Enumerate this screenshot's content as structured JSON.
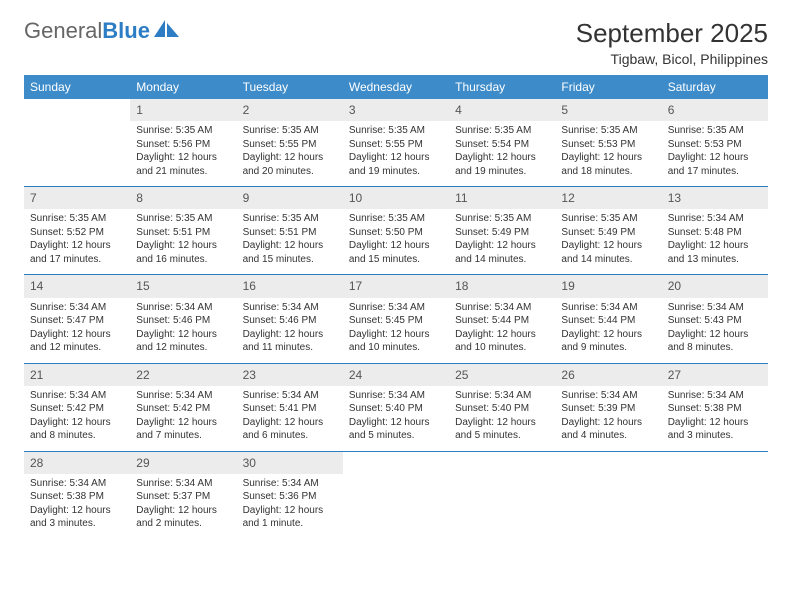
{
  "logo": {
    "general": "General",
    "blue": "Blue"
  },
  "title": "September 2025",
  "location": "Tigbaw, Bicol, Philippines",
  "colors": {
    "header_bg": "#3d8bc9",
    "header_text": "#ffffff",
    "daynum_bg": "#ececec",
    "border": "#2d7dc5",
    "logo_blue": "#2d7dc5",
    "body_text": "#333333"
  },
  "weekdays": [
    "Sunday",
    "Monday",
    "Tuesday",
    "Wednesday",
    "Thursday",
    "Friday",
    "Saturday"
  ],
  "weeks": [
    [
      null,
      {
        "n": "1",
        "sr": "5:35 AM",
        "ss": "5:56 PM",
        "dl": "12 hours and 21 minutes."
      },
      {
        "n": "2",
        "sr": "5:35 AM",
        "ss": "5:55 PM",
        "dl": "12 hours and 20 minutes."
      },
      {
        "n": "3",
        "sr": "5:35 AM",
        "ss": "5:55 PM",
        "dl": "12 hours and 19 minutes."
      },
      {
        "n": "4",
        "sr": "5:35 AM",
        "ss": "5:54 PM",
        "dl": "12 hours and 19 minutes."
      },
      {
        "n": "5",
        "sr": "5:35 AM",
        "ss": "5:53 PM",
        "dl": "12 hours and 18 minutes."
      },
      {
        "n": "6",
        "sr": "5:35 AM",
        "ss": "5:53 PM",
        "dl": "12 hours and 17 minutes."
      }
    ],
    [
      {
        "n": "7",
        "sr": "5:35 AM",
        "ss": "5:52 PM",
        "dl": "12 hours and 17 minutes."
      },
      {
        "n": "8",
        "sr": "5:35 AM",
        "ss": "5:51 PM",
        "dl": "12 hours and 16 minutes."
      },
      {
        "n": "9",
        "sr": "5:35 AM",
        "ss": "5:51 PM",
        "dl": "12 hours and 15 minutes."
      },
      {
        "n": "10",
        "sr": "5:35 AM",
        "ss": "5:50 PM",
        "dl": "12 hours and 15 minutes."
      },
      {
        "n": "11",
        "sr": "5:35 AM",
        "ss": "5:49 PM",
        "dl": "12 hours and 14 minutes."
      },
      {
        "n": "12",
        "sr": "5:35 AM",
        "ss": "5:49 PM",
        "dl": "12 hours and 14 minutes."
      },
      {
        "n": "13",
        "sr": "5:34 AM",
        "ss": "5:48 PM",
        "dl": "12 hours and 13 minutes."
      }
    ],
    [
      {
        "n": "14",
        "sr": "5:34 AM",
        "ss": "5:47 PM",
        "dl": "12 hours and 12 minutes."
      },
      {
        "n": "15",
        "sr": "5:34 AM",
        "ss": "5:46 PM",
        "dl": "12 hours and 12 minutes."
      },
      {
        "n": "16",
        "sr": "5:34 AM",
        "ss": "5:46 PM",
        "dl": "12 hours and 11 minutes."
      },
      {
        "n": "17",
        "sr": "5:34 AM",
        "ss": "5:45 PM",
        "dl": "12 hours and 10 minutes."
      },
      {
        "n": "18",
        "sr": "5:34 AM",
        "ss": "5:44 PM",
        "dl": "12 hours and 10 minutes."
      },
      {
        "n": "19",
        "sr": "5:34 AM",
        "ss": "5:44 PM",
        "dl": "12 hours and 9 minutes."
      },
      {
        "n": "20",
        "sr": "5:34 AM",
        "ss": "5:43 PM",
        "dl": "12 hours and 8 minutes."
      }
    ],
    [
      {
        "n": "21",
        "sr": "5:34 AM",
        "ss": "5:42 PM",
        "dl": "12 hours and 8 minutes."
      },
      {
        "n": "22",
        "sr": "5:34 AM",
        "ss": "5:42 PM",
        "dl": "12 hours and 7 minutes."
      },
      {
        "n": "23",
        "sr": "5:34 AM",
        "ss": "5:41 PM",
        "dl": "12 hours and 6 minutes."
      },
      {
        "n": "24",
        "sr": "5:34 AM",
        "ss": "5:40 PM",
        "dl": "12 hours and 5 minutes."
      },
      {
        "n": "25",
        "sr": "5:34 AM",
        "ss": "5:40 PM",
        "dl": "12 hours and 5 minutes."
      },
      {
        "n": "26",
        "sr": "5:34 AM",
        "ss": "5:39 PM",
        "dl": "12 hours and 4 minutes."
      },
      {
        "n": "27",
        "sr": "5:34 AM",
        "ss": "5:38 PM",
        "dl": "12 hours and 3 minutes."
      }
    ],
    [
      {
        "n": "28",
        "sr": "5:34 AM",
        "ss": "5:38 PM",
        "dl": "12 hours and 3 minutes."
      },
      {
        "n": "29",
        "sr": "5:34 AM",
        "ss": "5:37 PM",
        "dl": "12 hours and 2 minutes."
      },
      {
        "n": "30",
        "sr": "5:34 AM",
        "ss": "5:36 PM",
        "dl": "12 hours and 1 minute."
      },
      null,
      null,
      null,
      null
    ]
  ],
  "labels": {
    "sunrise": "Sunrise:",
    "sunset": "Sunset:",
    "daylight": "Daylight:"
  }
}
